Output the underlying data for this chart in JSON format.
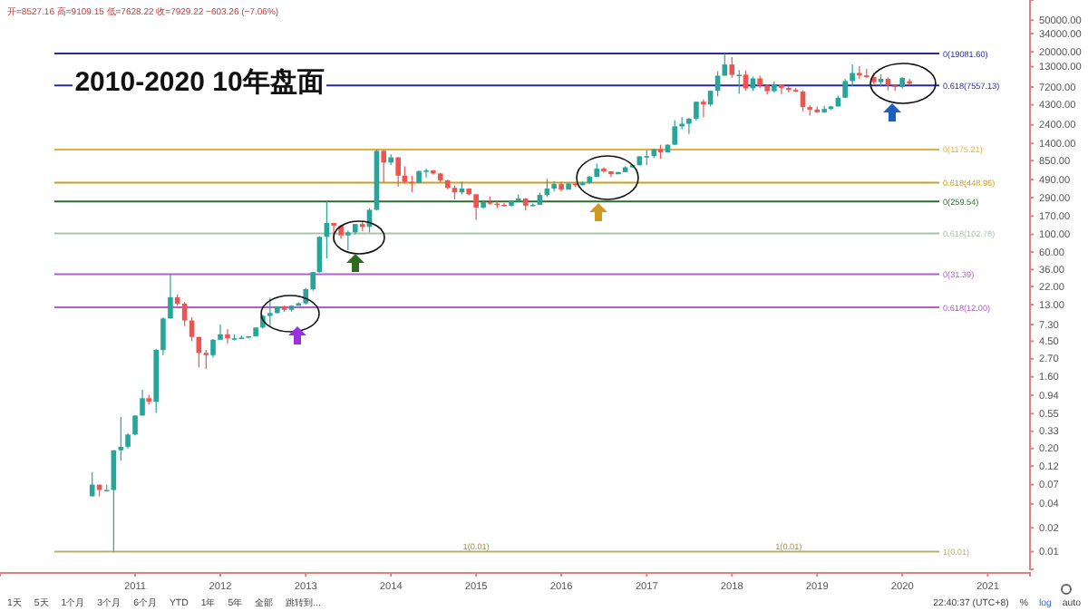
{
  "chart_data": {
    "type": "candlestick",
    "title": "2010-2020 10年盘面",
    "log": "y",
    "x": [
      "2010-07",
      "2010-08",
      "2010-09",
      "2010-10",
      "2010-11",
      "2010-12",
      "2011-01",
      "2011-02",
      "2011-03",
      "2011-04",
      "2011-05",
      "2011-06",
      "2011-07",
      "2011-08",
      "2011-09",
      "2011-10",
      "2011-11",
      "2011-12",
      "2012-01",
      "2012-02",
      "2012-03",
      "2012-04",
      "2012-05",
      "2012-06",
      "2012-07",
      "2012-08",
      "2012-09",
      "2012-10",
      "2012-11",
      "2012-12",
      "2013-01",
      "2013-02",
      "2013-03",
      "2013-04",
      "2013-05",
      "2013-06",
      "2013-07",
      "2013-08",
      "2013-09",
      "2013-10",
      "2013-11",
      "2013-12",
      "2014-01",
      "2014-02",
      "2014-03",
      "2014-04",
      "2014-05",
      "2014-06",
      "2014-07",
      "2014-08",
      "2014-09",
      "2014-10",
      "2014-11",
      "2014-12",
      "2015-01",
      "2015-02",
      "2015-03",
      "2015-04",
      "2015-05",
      "2015-06",
      "2015-07",
      "2015-08",
      "2015-09",
      "2015-10",
      "2015-11",
      "2015-12",
      "2016-01",
      "2016-02",
      "2016-03",
      "2016-04",
      "2016-05",
      "2016-06",
      "2016-07",
      "2016-08",
      "2016-09",
      "2016-10",
      "2016-11",
      "2016-12",
      "2017-01",
      "2017-02",
      "2017-03",
      "2017-04",
      "2017-05",
      "2017-06",
      "2017-07",
      "2017-08",
      "2017-09",
      "2017-10",
      "2017-11",
      "2017-12",
      "2018-01",
      "2018-02",
      "2018-03",
      "2018-04",
      "2018-05",
      "2018-06",
      "2018-07",
      "2018-08",
      "2018-09",
      "2018-10",
      "2018-11",
      "2018-12",
      "2019-01",
      "2019-02",
      "2019-03",
      "2019-04",
      "2019-05",
      "2019-06",
      "2019-07",
      "2019-08",
      "2019-09",
      "2019-10",
      "2019-11",
      "2019-12",
      "2020-01",
      "2020-02"
    ],
    "ohlc": [
      [
        0.05,
        0.1,
        0.05,
        0.07
      ],
      [
        0.07,
        0.07,
        0.05,
        0.06
      ],
      [
        0.06,
        0.07,
        0.06,
        0.06
      ],
      [
        0.06,
        0.19,
        0.01,
        0.19
      ],
      [
        0.19,
        0.5,
        0.14,
        0.21
      ],
      [
        0.21,
        0.31,
        0.2,
        0.3
      ],
      [
        0.3,
        0.53,
        0.29,
        0.52
      ],
      [
        0.52,
        1.1,
        0.52,
        0.86
      ],
      [
        0.86,
        0.95,
        0.72,
        0.78
      ],
      [
        0.78,
        3.6,
        0.56,
        3.5
      ],
      [
        3.5,
        9,
        3,
        8.7
      ],
      [
        8.7,
        31.39,
        8.7,
        16.1
      ],
      [
        16.1,
        17.5,
        12.6,
        13.4
      ],
      [
        13.4,
        14,
        7,
        8.2
      ],
      [
        8.2,
        9,
        4.5,
        5.1
      ],
      [
        5.1,
        5.1,
        2.1,
        3.2
      ],
      [
        3.2,
        3.5,
        2,
        3
      ],
      [
        3,
        4.8,
        2.8,
        4.7
      ],
      [
        4.7,
        7.3,
        4.7,
        5.5
      ],
      [
        5.5,
        6.4,
        4.2,
        4.9
      ],
      [
        4.9,
        5.5,
        4.6,
        4.9
      ],
      [
        4.9,
        5.3,
        4.8,
        5
      ],
      [
        5,
        5.2,
        4.9,
        5.2
      ],
      [
        5.2,
        6.7,
        5.2,
        6.7
      ],
      [
        6.7,
        9.7,
        6.5,
        9.4
      ],
      [
        9.4,
        16,
        7,
        10.2
      ],
      [
        10.2,
        12.4,
        10,
        12.4
      ],
      [
        12.4,
        12.7,
        10.5,
        11.2
      ],
      [
        11.2,
        12.8,
        10.6,
        12.6
      ],
      [
        12.6,
        13.9,
        12.6,
        13.5
      ],
      [
        13.5,
        21,
        13,
        20.4
      ],
      [
        20.4,
        33.5,
        19.5,
        33.4
      ],
      [
        33.4,
        95,
        33,
        93
      ],
      [
        93,
        259.54,
        50,
        139
      ],
      [
        139,
        140,
        80,
        129
      ],
      [
        129,
        130,
        88,
        97
      ],
      [
        97,
        112,
        63,
        106
      ],
      [
        106,
        135,
        100,
        135
      ],
      [
        135,
        145,
        110,
        124
      ],
      [
        124,
        215,
        106,
        204
      ],
      [
        204,
        1175.21,
        200,
        1129
      ],
      [
        1129,
        1165,
        450,
        805
      ],
      [
        805,
        1020,
        750,
        935
      ],
      [
        935,
        940,
        400,
        550
      ],
      [
        550,
        720,
        440,
        458
      ],
      [
        458,
        550,
        340,
        447
      ],
      [
        447,
        635,
        440,
        628
      ],
      [
        628,
        680,
        520,
        640
      ],
      [
        640,
        650,
        565,
        585
      ],
      [
        585,
        600,
        450,
        480
      ],
      [
        480,
        490,
        370,
        386
      ],
      [
        386,
        415,
        275,
        338
      ],
      [
        338,
        460,
        320,
        378
      ],
      [
        378,
        380,
        310,
        320
      ],
      [
        320,
        320,
        152,
        218
      ],
      [
        218,
        270,
        210,
        254
      ],
      [
        254,
        300,
        236,
        244
      ],
      [
        244,
        260,
        215,
        236
      ],
      [
        236,
        248,
        225,
        230
      ],
      [
        230,
        268,
        222,
        264
      ],
      [
        264,
        317,
        253,
        284
      ],
      [
        284,
        285,
        200,
        230
      ],
      [
        230,
        245,
        225,
        236
      ],
      [
        236,
        335,
        235,
        314
      ],
      [
        314,
        500,
        300,
        378
      ],
      [
        378,
        470,
        350,
        430
      ],
      [
        430,
        460,
        350,
        368
      ],
      [
        368,
        445,
        365,
        437
      ],
      [
        437,
        440,
        395,
        416
      ],
      [
        416,
        468,
        415,
        448
      ],
      [
        448,
        548,
        435,
        531
      ],
      [
        531,
        780,
        525,
        673
      ],
      [
        673,
        700,
        600,
        624
      ],
      [
        624,
        624,
        530,
        574
      ],
      [
        574,
        615,
        570,
        609
      ],
      [
        609,
        720,
        605,
        700
      ],
      [
        700,
        755,
        690,
        745
      ],
      [
        745,
        970,
        740,
        963
      ],
      [
        963,
        1150,
        750,
        970
      ],
      [
        970,
        1200,
        915,
        1190
      ],
      [
        1190,
        1350,
        900,
        1080
      ],
      [
        1080,
        1360,
        1070,
        1350
      ],
      [
        1350,
        2760,
        1340,
        2300
      ],
      [
        2300,
        3000,
        2100,
        2480
      ],
      [
        2480,
        2950,
        1850,
        2870
      ],
      [
        2870,
        4750,
        2700,
        4700
      ],
      [
        4700,
        5000,
        3000,
        4340
      ],
      [
        4340,
        6450,
        4100,
        6450
      ],
      [
        6450,
        11400,
        5500,
        10000
      ],
      [
        10000,
        19081.6,
        10000,
        13850
      ],
      [
        13850,
        17200,
        9400,
        10250
      ],
      [
        10250,
        11800,
        5900,
        10300
      ],
      [
        10300,
        11700,
        6500,
        6930
      ],
      [
        6930,
        9750,
        6450,
        9240
      ],
      [
        9240,
        9990,
        7000,
        7500
      ],
      [
        7500,
        7750,
        5800,
        6390
      ],
      [
        6390,
        8500,
        6100,
        7730
      ],
      [
        7730,
        7760,
        5880,
        7020
      ],
      [
        7020,
        7400,
        6150,
        6620
      ],
      [
        6620,
        7000,
        6200,
        6310
      ],
      [
        6310,
        6550,
        3550,
        4020
      ],
      [
        4020,
        4250,
        3150,
        3740
      ],
      [
        3740,
        4100,
        3400,
        3460
      ],
      [
        3460,
        4200,
        3380,
        3810
      ],
      [
        3810,
        4120,
        3700,
        4100
      ],
      [
        4100,
        5600,
        4100,
        5270
      ],
      [
        5270,
        9100,
        5250,
        8560
      ],
      [
        8560,
        13880,
        7500,
        10820
      ],
      [
        10820,
        13200,
        9050,
        10080
      ],
      [
        10080,
        12300,
        9350,
        9600
      ],
      [
        9600,
        10950,
        7730,
        8290
      ],
      [
        8290,
        10400,
        7300,
        9150
      ],
      [
        9150,
        9500,
        6520,
        7550
      ],
      [
        7550,
        7750,
        6420,
        7190
      ],
      [
        7190,
        9600,
        6870,
        9350
      ],
      [
        8527.16,
        9109.15,
        7628.22,
        7929.22
      ]
    ],
    "xlim": [
      "2009-06",
      "2021-07"
    ],
    "xticks": [
      {
        "value": "2011",
        "label": "2011"
      },
      {
        "value": "2012",
        "label": "2012"
      },
      {
        "value": "2013",
        "label": "2013"
      },
      {
        "value": "2014",
        "label": "2014"
      },
      {
        "value": "2015",
        "label": "2015"
      },
      {
        "value": "2016",
        "label": "2016"
      },
      {
        "value": "2017",
        "label": "2017"
      },
      {
        "value": "2018",
        "label": "2018"
      },
      {
        "value": "2019",
        "label": "2019"
      },
      {
        "value": "2020",
        "label": "2020"
      },
      {
        "value": "2021",
        "label": "2021"
      }
    ],
    "ylim": [
      0.006,
      90000
    ],
    "yticks": [
      {
        "value": 50000,
        "label": "50000.00"
      },
      {
        "value": 34000,
        "label": "34000.00"
      },
      {
        "value": 20000,
        "label": "20000.00"
      },
      {
        "value": 13000,
        "label": "13000.00"
      },
      {
        "value": 7200,
        "label": "7200.00"
      },
      {
        "value": 4300,
        "label": "4300.00"
      },
      {
        "value": 2400,
        "label": "2400.00"
      },
      {
        "value": 1400,
        "label": "1400.00"
      },
      {
        "value": 850,
        "label": "850.00"
      },
      {
        "value": 490,
        "label": "490.00"
      },
      {
        "value": 290,
        "label": "290.00"
      },
      {
        "value": 170,
        "label": "170.00"
      },
      {
        "value": 100,
        "label": "100.00"
      },
      {
        "value": 60,
        "label": "60.00"
      },
      {
        "value": 36,
        "label": "36.00"
      },
      {
        "value": 22,
        "label": "22.00"
      },
      {
        "value": 13,
        "label": "13.00"
      },
      {
        "value": 7.3,
        "label": "7.30"
      },
      {
        "value": 4.5,
        "label": "4.50"
      },
      {
        "value": 2.7,
        "label": "2.70"
      },
      {
        "value": 1.6,
        "label": "1.60"
      },
      {
        "value": 0.94,
        "label": "0.94"
      },
      {
        "value": 0.55,
        "label": "0.55"
      },
      {
        "value": 0.33,
        "label": "0.33"
      },
      {
        "value": 0.2,
        "label": "0.20"
      },
      {
        "value": 0.12,
        "label": "0.12"
      },
      {
        "value": 0.07,
        "label": "0.07"
      },
      {
        "value": 0.04,
        "label": "0.04"
      },
      {
        "value": 0.02,
        "label": "0.02"
      },
      {
        "value": 0.01,
        "label": "0.01"
      }
    ],
    "ref_lines": [
      {
        "axis": "y",
        "value": 19081.6,
        "label": "0(19081.60)",
        "color": "#2a2aa0"
      },
      {
        "axis": "y",
        "value": 7557.13,
        "label": "0.618(7557.13)",
        "color": "#2a2aa0"
      },
      {
        "axis": "y",
        "value": 1175.21,
        "label": "0(1175.21)",
        "color": "#e0b040"
      },
      {
        "axis": "y",
        "value": 448.96,
        "label": "0.618(448.96)",
        "color": "#c8a020"
      },
      {
        "axis": "y",
        "value": 259.54,
        "label": "0(259.54)",
        "color": "#2e6b2e"
      },
      {
        "axis": "y",
        "value": 102.78,
        "label": "0.618(102.78)",
        "color": "#a8c4a8"
      },
      {
        "axis": "y",
        "value": 31.39,
        "label": "0(31.39)",
        "color": "#b060c8"
      },
      {
        "axis": "y",
        "value": 12.0,
        "label": "0.618(12.00)",
        "color": "#b060c8"
      },
      {
        "axis": "y",
        "value": 0.01,
        "label": "1(0.01)",
        "color": "#b8b070"
      }
    ],
    "annotations": [
      "开=8527.16 高=9109.15 低=7628.22 收=7929.22 −603.26 (−7.06%)",
      "1天",
      "5天",
      "1个月",
      "3个月",
      "6个月",
      "YTD",
      "1年",
      "5年",
      "全部",
      "跳转到...",
      "22:40:37 (UTC+8)",
      "%",
      "log",
      "auto",
      {
        "text": "1(0.01)",
        "x": "2015-01",
        "y": 0.01
      },
      {
        "text": "1(0.01)",
        "x": "2018-09",
        "y": 0.01
      }
    ]
  }
}
